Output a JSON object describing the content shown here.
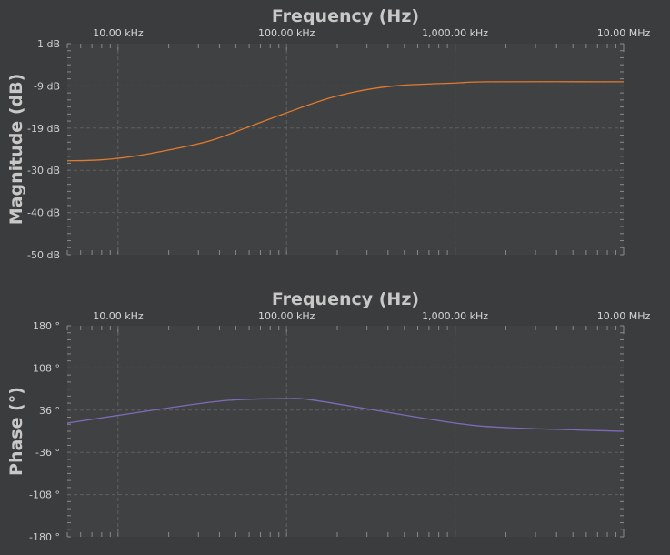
{
  "chart_data": [
    {
      "type": "line",
      "xlabel": "Frequency (Hz)",
      "ylabel": "Magnitude (dB)",
      "x_scale": "log",
      "xlim": [
        5000,
        10000000
      ],
      "x_ticks": [
        {
          "value": 10000,
          "label": "10.00 kHz"
        },
        {
          "value": 100000,
          "label": "100.00 kHz"
        },
        {
          "value": 1000000,
          "label": "1,000.00 kHz"
        },
        {
          "value": 10000000,
          "label": "10.00 MHz"
        }
      ],
      "ylim": [
        -50,
        1
      ],
      "y_ticks": [
        {
          "value": 1,
          "label": "1 dB"
        },
        {
          "value": -9.2,
          "label": "-9 dB"
        },
        {
          "value": -19.4,
          "label": "-19 dB"
        },
        {
          "value": -29.6,
          "label": "-30 dB"
        },
        {
          "value": -39.8,
          "label": "-40 dB"
        },
        {
          "value": -50,
          "label": "-50 dB"
        }
      ],
      "grid": true,
      "color": "#e07a2e",
      "series": [
        {
          "x": [
            5000,
            7800,
            12500,
            20000,
            35000,
            57000,
            100000,
            178000,
            290000,
            470000,
            1000000,
            1600000,
            10000000
          ],
          "y": [
            -27.3,
            -27.1,
            -26.2,
            -24.7,
            -22.5,
            -19.4,
            -15.7,
            -12.2,
            -10.2,
            -9.1,
            -8.5,
            -8.2,
            -8.2
          ]
        }
      ]
    },
    {
      "type": "line",
      "xlabel": "Frequency (Hz)",
      "ylabel": "Phase (°)",
      "x_scale": "log",
      "xlim": [
        5000,
        10000000
      ],
      "x_ticks": [
        {
          "value": 10000,
          "label": "10.00 kHz"
        },
        {
          "value": 100000,
          "label": "100.00 kHz"
        },
        {
          "value": 1000000,
          "label": "1,000.00 kHz"
        },
        {
          "value": 10000000,
          "label": "10.00 MHz"
        }
      ],
      "ylim": [
        -180,
        180
      ],
      "y_ticks": [
        {
          "value": 180,
          "label": "180 °"
        },
        {
          "value": 108,
          "label": "108 °"
        },
        {
          "value": 36,
          "label": "36 °"
        },
        {
          "value": -36,
          "label": "-36 °"
        },
        {
          "value": -108,
          "label": "-108 °"
        },
        {
          "value": -180,
          "label": "-180 °"
        }
      ],
      "grid": true,
      "color": "#7e6bb8",
      "series": [
        {
          "x": [
            5000,
            19000,
            45000,
            100000,
            137000,
            290000,
            1000000,
            2100000,
            10000000
          ],
          "y": [
            14,
            39,
            52.7,
            55.8,
            54,
            39,
            14,
            6,
            0
          ]
        }
      ]
    }
  ]
}
